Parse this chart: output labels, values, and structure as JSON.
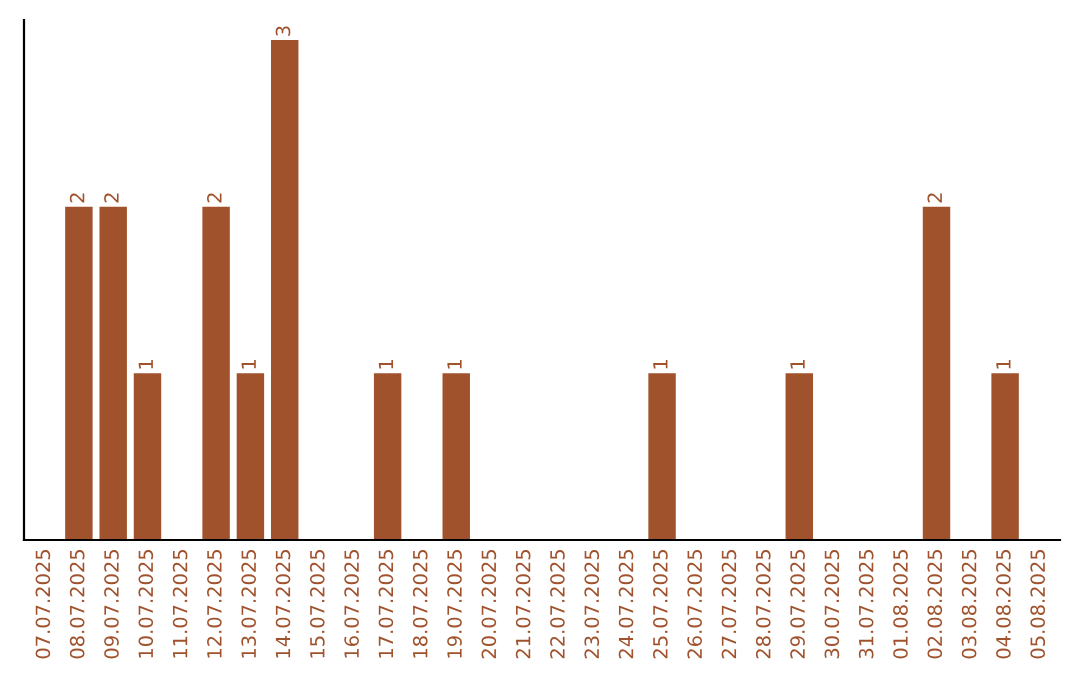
{
  "chart_data": {
    "type": "bar",
    "categories": [
      "07.07.2025",
      "08.07.2025",
      "09.07.2025",
      "10.07.2025",
      "11.07.2025",
      "12.07.2025",
      "13.07.2025",
      "14.07.2025",
      "15.07.2025",
      "16.07.2025",
      "17.07.2025",
      "18.07.2025",
      "19.07.2025",
      "20.07.2025",
      "21.07.2025",
      "22.07.2025",
      "23.07.2025",
      "24.07.2025",
      "25.07.2025",
      "26.07.2025",
      "27.07.2025",
      "28.07.2025",
      "29.07.2025",
      "30.07.2025",
      "31.07.2025",
      "01.08.2025",
      "02.08.2025",
      "03.08.2025",
      "04.08.2025",
      "05.08.2025"
    ],
    "values": [
      null,
      2,
      2,
      1,
      null,
      2,
      1,
      3,
      null,
      null,
      1,
      null,
      1,
      null,
      null,
      null,
      null,
      null,
      1,
      null,
      null,
      null,
      1,
      null,
      null,
      null,
      2,
      null,
      1,
      null
    ],
    "color": "#a0522d",
    "ylim": [
      0,
      3.12
    ],
    "tick_labels": "x",
    "data_labels": true,
    "grid": false,
    "legend": false
  }
}
